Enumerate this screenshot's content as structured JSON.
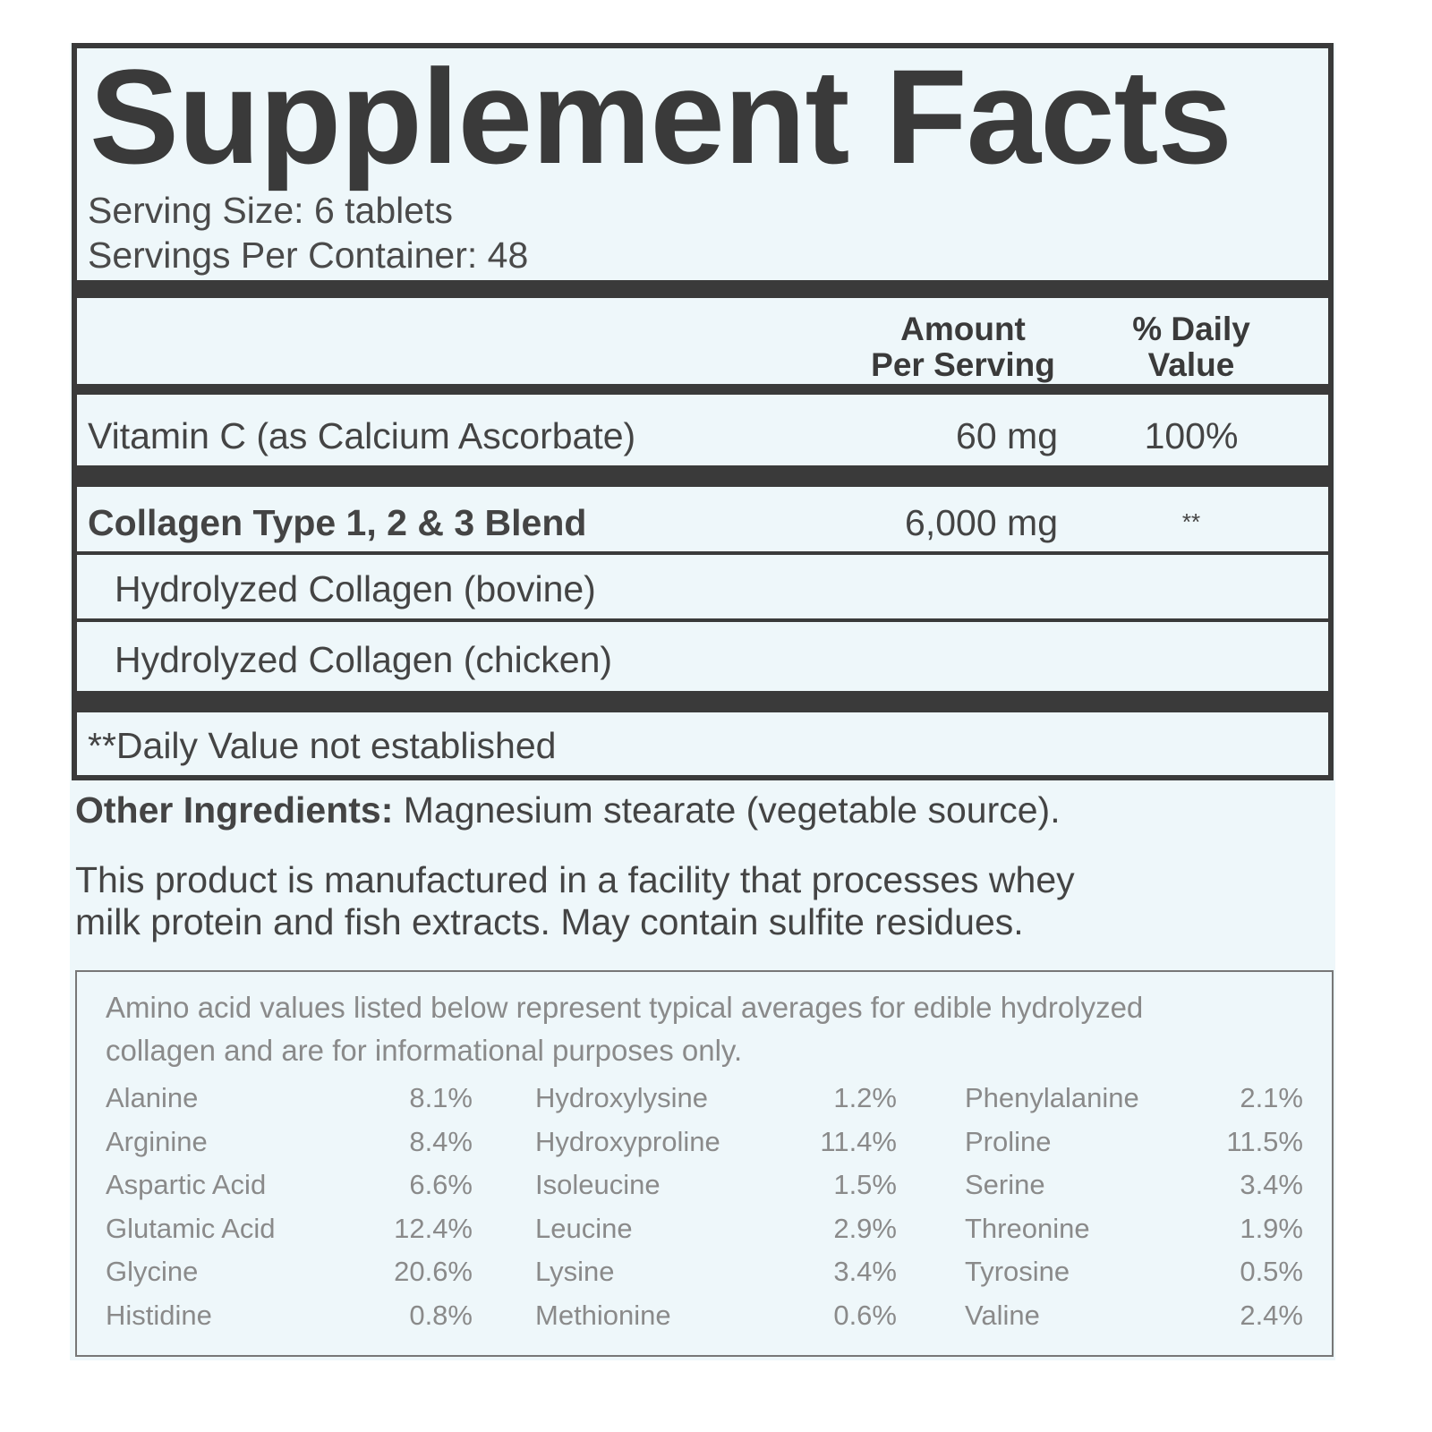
{
  "title": "Supplement Facts",
  "serving_size": "Serving Size: 6 tablets",
  "servings_per_container": "Servings Per Container: 48",
  "header": {
    "amount_line1": "Amount",
    "amount_line2": "Per Serving",
    "dv_line1": "% Daily",
    "dv_line2": "Value"
  },
  "rows": [
    {
      "name": "Vitamin C (as Calcium Ascorbate)",
      "amount": "60 mg",
      "dv": "100%"
    },
    {
      "name": "Collagen Type 1, 2 & 3 Blend",
      "amount": "6,000 mg",
      "dv": "**"
    },
    {
      "name": "Hydrolyzed Collagen (bovine)"
    },
    {
      "name": "Hydrolyzed Collagen (chicken)"
    }
  ],
  "footnote": "**Daily Value not established",
  "other_ingredients": {
    "label": "Other Ingredients:",
    "text": "Magnesium stearate (vegetable source)."
  },
  "allergen": {
    "line1": "This product is manufactured in a facility that processes whey",
    "line2": "milk protein and fish extracts. May contain sulfite residues."
  },
  "amino": {
    "note_line1": "Amino acid values listed below represent typical averages for edible hydrolyzed",
    "note_line2": "collagen and are for informational purposes only.",
    "items": [
      {
        "name": "Alanine",
        "value": "8.1%"
      },
      {
        "name": "Arginine",
        "value": "8.4%"
      },
      {
        "name": "Aspartic Acid",
        "value": "6.6%"
      },
      {
        "name": "Glutamic Acid",
        "value": "12.4%"
      },
      {
        "name": "Glycine",
        "value": "20.6%"
      },
      {
        "name": "Histidine",
        "value": "0.8%"
      },
      {
        "name": "Hydroxylysine",
        "value": "1.2%"
      },
      {
        "name": "Hydroxyproline",
        "value": "11.4%"
      },
      {
        "name": "Isoleucine",
        "value": "1.5%"
      },
      {
        "name": "Leucine",
        "value": "2.9%"
      },
      {
        "name": "Lysine",
        "value": "3.4%"
      },
      {
        "name": "Methionine",
        "value": "0.6%"
      },
      {
        "name": "Phenylalanine",
        "value": "2.1%"
      },
      {
        "name": "Proline",
        "value": "11.5%"
      },
      {
        "name": "Serine",
        "value": "3.4%"
      },
      {
        "name": "Threonine",
        "value": "1.9%"
      },
      {
        "name": "Tyrosine",
        "value": "0.5%"
      },
      {
        "name": "Valine",
        "value": "2.4%"
      }
    ]
  }
}
